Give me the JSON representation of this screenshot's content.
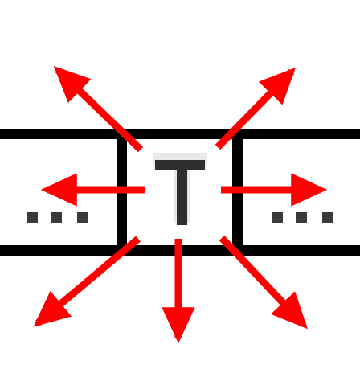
{
  "illustration": {
    "tile": {
      "glyph": "T",
      "glyph_color": "#2e2e2e",
      "glyph_highlight_color": "#e8e8e8"
    },
    "neighbor_tiles": {
      "left_label": "...",
      "right_label": "...",
      "dot_color": "#3a3a3a"
    },
    "grid_line_color": "#000000",
    "arrows": {
      "color": "#ff0000",
      "directions": [
        "up-left",
        "up-right",
        "left",
        "right",
        "down-left",
        "down",
        "down-right"
      ]
    }
  }
}
